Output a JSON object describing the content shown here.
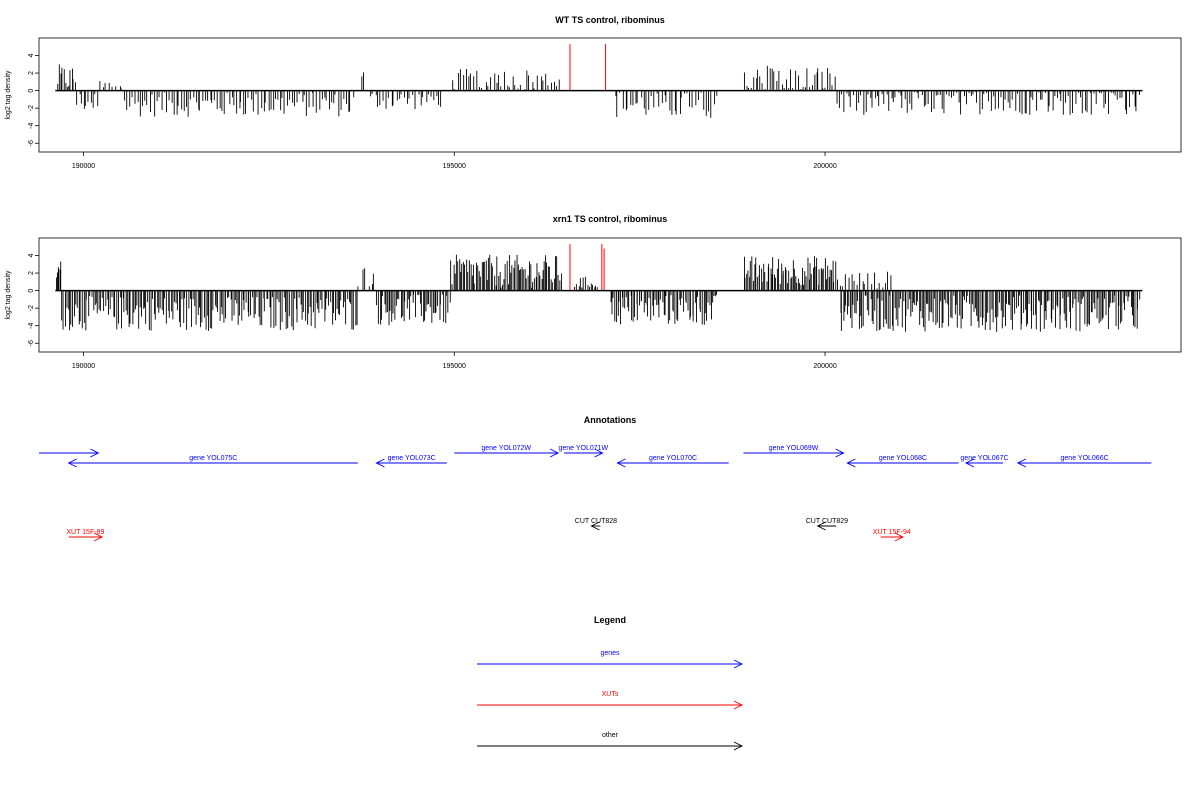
{
  "chart_data": [
    {
      "type": "bar",
      "title": "WT TS control, ribominus",
      "xlabel": "",
      "ylabel": "log2 tag density",
      "xlim": [
        189400,
        204800
      ],
      "ylim": [
        -7,
        6
      ],
      "x_ticks": [
        "190000",
        "195000",
        "200000"
      ],
      "y_ticks": [
        "4",
        "2",
        "0",
        "-2",
        "-4",
        "-6"
      ],
      "baseline_range": [
        189620,
        204280
      ],
      "highlight_color": "#ff0000",
      "highlights": [
        {
          "x": 196560,
          "value": 5.3
        },
        {
          "x": 197040,
          "value": 5.3
        }
      ],
      "segments": [
        {
          "start": 189640,
          "end": 189900,
          "mean": 1.4,
          "amp": 1.6,
          "n": 12
        },
        {
          "start": 189900,
          "end": 190200,
          "mean": -1.3,
          "amp": 1.2,
          "n": 10
        },
        {
          "start": 190200,
          "end": 190550,
          "mean": 0.6,
          "amp": 0.7,
          "n": 8
        },
        {
          "start": 190550,
          "end": 193650,
          "mean": -1.6,
          "amp": 1.4,
          "n": 95
        },
        {
          "start": 193750,
          "end": 193780,
          "mean": 1.8,
          "amp": 0.5,
          "n": 2
        },
        {
          "start": 193850,
          "end": 194850,
          "mean": -1.1,
          "amp": 1.1,
          "n": 28
        },
        {
          "start": 194950,
          "end": 196450,
          "mean": 1.2,
          "amp": 1.3,
          "n": 40
        },
        {
          "start": 197150,
          "end": 198550,
          "mean": -1.6,
          "amp": 1.6,
          "n": 40
        },
        {
          "start": 198900,
          "end": 200150,
          "mean": 1.3,
          "amp": 1.6,
          "n": 40
        },
        {
          "start": 200150,
          "end": 204250,
          "mean": -1.3,
          "amp": 1.5,
          "n": 130
        }
      ]
    },
    {
      "type": "bar",
      "title": "xrn1 TS control, ribominus",
      "xlabel": "",
      "ylabel": "log2 tag density",
      "xlim": [
        189400,
        204800
      ],
      "ylim": [
        -7,
        6
      ],
      "x_ticks": [
        "190000",
        "195000",
        "200000"
      ],
      "y_ticks": [
        "4",
        "2",
        "0",
        "-2",
        "-4",
        "-6"
      ],
      "baseline_range": [
        189620,
        204280
      ],
      "highlight_color": "#ff0000",
      "highlights": [
        {
          "x": 196560,
          "value": 5.3
        },
        {
          "x": 196990,
          "value": 5.3
        },
        {
          "x": 197020,
          "value": 4.8
        }
      ],
      "segments": [
        {
          "start": 189630,
          "end": 189700,
          "mean": 2.2,
          "amp": 1.3,
          "n": 6
        },
        {
          "start": 189700,
          "end": 193700,
          "mean": -2.6,
          "amp": 2.0,
          "n": 190
        },
        {
          "start": 193700,
          "end": 193950,
          "mean": 1.6,
          "amp": 1.2,
          "n": 6
        },
        {
          "start": 193950,
          "end": 194950,
          "mean": -2.2,
          "amp": 1.8,
          "n": 50
        },
        {
          "start": 194950,
          "end": 196450,
          "mean": 2.2,
          "amp": 1.9,
          "n": 80
        },
        {
          "start": 196620,
          "end": 196950,
          "mean": 0.9,
          "amp": 0.7,
          "n": 14
        },
        {
          "start": 197100,
          "end": 198550,
          "mean": -2.2,
          "amp": 1.8,
          "n": 75
        },
        {
          "start": 198900,
          "end": 200150,
          "mean": 2.3,
          "amp": 1.7,
          "n": 70
        },
        {
          "start": 200150,
          "end": 200900,
          "mean": 1.2,
          "amp": 1.0,
          "n": 20
        },
        {
          "start": 200200,
          "end": 204250,
          "mean": -2.6,
          "amp": 2.1,
          "n": 210
        }
      ]
    }
  ],
  "annotations": {
    "title": "Annotations",
    "features": [
      {
        "label": "",
        "type": "gene",
        "strand": "+",
        "start": 189400,
        "end": 190200,
        "row": 1
      },
      {
        "label": "gene YOL075C",
        "type": "gene",
        "strand": "-",
        "start": 189800,
        "end": 193700,
        "row": 0
      },
      {
        "label": "gene YOL073C",
        "type": "gene",
        "strand": "-",
        "start": 193950,
        "end": 194900,
        "row": 0
      },
      {
        "label": "gene YOL072W",
        "type": "gene",
        "strand": "+",
        "start": 195000,
        "end": 196400,
        "row": 1
      },
      {
        "label": "gene YOL071W",
        "type": "gene",
        "strand": "+",
        "start": 196480,
        "end": 197000,
        "row": 1
      },
      {
        "label": "gene YOL070C",
        "type": "gene",
        "strand": "-",
        "start": 197200,
        "end": 198700,
        "row": 0
      },
      {
        "label": "gene YOL069W",
        "type": "gene",
        "strand": "+",
        "start": 198900,
        "end": 200250,
        "row": 1
      },
      {
        "label": "gene YOL068C",
        "type": "gene",
        "strand": "-",
        "start": 200300,
        "end": 201800,
        "row": 0
      },
      {
        "label": "gene YOL067C",
        "type": "gene",
        "strand": "-",
        "start": 201900,
        "end": 202400,
        "row": 0
      },
      {
        "label": "gene YOL066C",
        "type": "gene",
        "strand": "-",
        "start": 202600,
        "end": 204400,
        "row": 0
      },
      {
        "label": "CUT CUT828",
        "type": "other",
        "strand": "-",
        "start": 196850,
        "end": 196970,
        "row": 2
      },
      {
        "label": "CUT CUT829",
        "type": "other",
        "strand": "-",
        "start": 199900,
        "end": 200150,
        "row": 2
      },
      {
        "label": "XUT 15F-89",
        "type": "xut",
        "strand": "+",
        "start": 189800,
        "end": 190250,
        "row": 3
      },
      {
        "label": "XUT 15F-94",
        "type": "xut",
        "strand": "+",
        "start": 200750,
        "end": 201050,
        "row": 3
      }
    ]
  },
  "legend": {
    "title": "Legend",
    "items": [
      {
        "label": "genes",
        "color": "#0000ff"
      },
      {
        "label": "XUTs",
        "color": "#ff0000"
      },
      {
        "label": "other",
        "color": "#000000"
      }
    ]
  },
  "colors": {
    "gene": "#0000ff",
    "xut": "#ff0000",
    "other": "#000000",
    "bars": "#000000",
    "frame": "#000000"
  }
}
